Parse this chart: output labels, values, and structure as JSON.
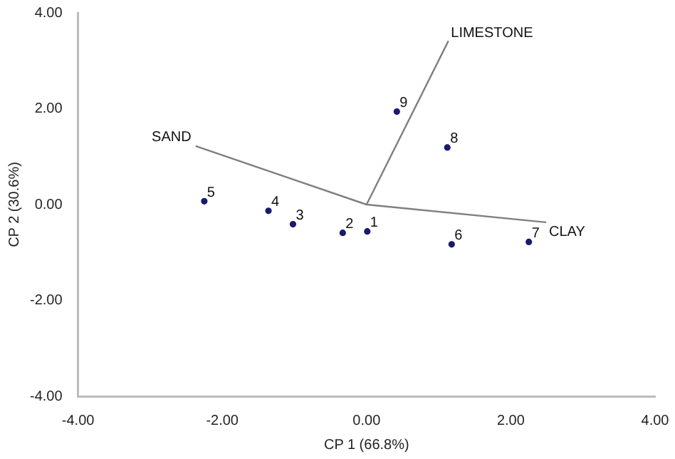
{
  "chart_data": {
    "type": "scatter",
    "xlabel": "CP 1 (66.8%)",
    "ylabel": "CP 2 (30.6%)",
    "xlim": [
      -4,
      4
    ],
    "ylim": [
      -4,
      4
    ],
    "xticks": [
      {
        "value": -4,
        "label": "-4.00"
      },
      {
        "value": -2,
        "label": "-2.00"
      },
      {
        "value": 0,
        "label": "0.00"
      },
      {
        "value": 2,
        "label": "2.00"
      },
      {
        "value": 4,
        "label": "4.00"
      }
    ],
    "yticks": [
      {
        "value": -4,
        "label": "-4.00"
      },
      {
        "value": -2,
        "label": "-2.00"
      },
      {
        "value": 0,
        "label": "0.00"
      },
      {
        "value": 2,
        "label": "2.00"
      },
      {
        "value": 4,
        "label": "4.00"
      }
    ],
    "grid": false,
    "legend": false,
    "series": [
      {
        "type": "scatter",
        "color": "#1a1a6e",
        "marker": "circle",
        "x": [
          0.01,
          -0.33,
          -1.02,
          -1.36,
          -2.25,
          1.18,
          2.25,
          1.12,
          0.42
        ],
        "values": [
          -0.56,
          -0.59,
          -0.41,
          -0.13,
          0.07,
          -0.83,
          -0.78,
          1.19,
          1.94
        ]
      },
      {
        "type": "line",
        "color": "#7f7f7f",
        "marker": "none",
        "x": [
          -2.37,
          0,
          1.13,
          0,
          2.49
        ],
        "values": [
          1.22,
          0,
          3.4,
          0,
          -0.37
        ]
      }
    ],
    "annotations": [
      {
        "text": "1",
        "x": 0.01,
        "y": -0.56
      },
      {
        "text": "2",
        "x": -0.33,
        "y": -0.59
      },
      {
        "text": "3",
        "x": -1.02,
        "y": -0.41
      },
      {
        "text": "4",
        "x": -1.36,
        "y": -0.13
      },
      {
        "text": "5",
        "x": -2.25,
        "y": 0.07
      },
      {
        "text": "6",
        "x": 1.18,
        "y": -0.83
      },
      {
        "text": "7",
        "x": 2.25,
        "y": -0.78
      },
      {
        "text": "8",
        "x": 1.12,
        "y": 1.19
      },
      {
        "text": "9",
        "x": 0.42,
        "y": 1.94
      },
      {
        "text": "SAND",
        "x": -2.37,
        "y": 1.22
      },
      {
        "text": "LIMESTONE",
        "x": 1.13,
        "y": 3.4
      },
      {
        "text": "CLAY",
        "x": 2.49,
        "y": -0.37
      }
    ]
  }
}
